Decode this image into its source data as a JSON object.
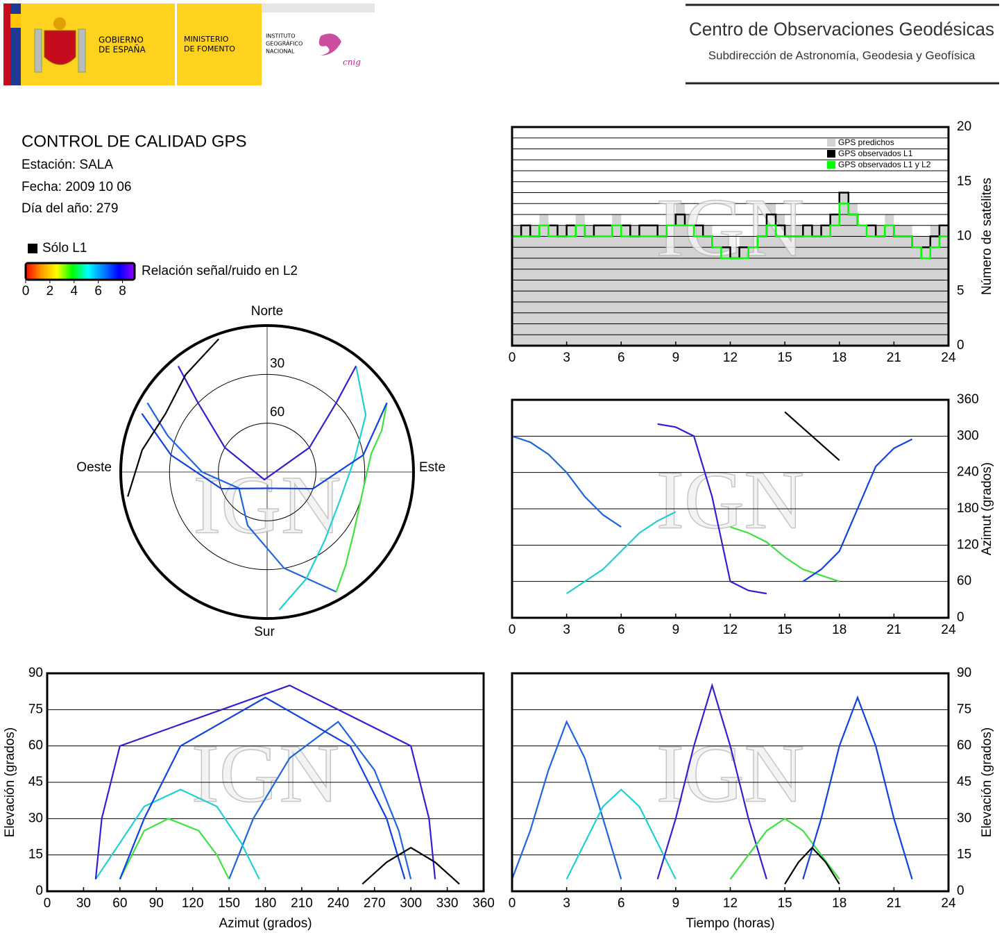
{
  "header": {
    "gobierno": [
      "GOBIERNO",
      "DE ESPAÑA"
    ],
    "ministerio": [
      "MINISTERIO",
      "DE FOMENTO"
    ],
    "instituto": [
      "INSTITUTO",
      "GEOGRÁFICO",
      "NACIONAL"
    ],
    "cnig": "cnig",
    "center": "Centro de Observaciones Geodésicas",
    "subtitle": "Subdirección de Astronomía, Geodesia y Geofísica"
  },
  "info": {
    "title": "CONTROL DE CALIDAD GPS",
    "station": "Estación: SALA",
    "date": "Fecha: 2009 10 06",
    "doy": "Día del año: 279"
  },
  "legend": {
    "l1_only": "Sólo L1",
    "colorbar": {
      "label": "Relación señal/ruido en L2",
      "lim": [
        0,
        9
      ],
      "ticks": [
        0,
        2,
        4,
        6,
        8
      ],
      "colors": [
        "#ff0000",
        "#ff9900",
        "#ffff00",
        "#00ff00",
        "#00ffff",
        "#0080ff",
        "#0000ff",
        "#9900ff"
      ]
    }
  },
  "chart_data": [
    {
      "type": "step",
      "watermark": "IGN",
      "ylabel": "Número de satélites",
      "xlim": [
        0,
        24
      ],
      "xticks": [
        0,
        3,
        6,
        9,
        12,
        15,
        18,
        21,
        24
      ],
      "ylim": [
        0,
        20
      ],
      "yticks": [
        0,
        5,
        10,
        15,
        20
      ],
      "minor_yticks": [
        1,
        2,
        3,
        4,
        6,
        7,
        8,
        9,
        11,
        12,
        13,
        14,
        16,
        17,
        18,
        19
      ],
      "legend": "upper right",
      "x": [
        0,
        0.5,
        1,
        1.5,
        2,
        2.5,
        3,
        3.5,
        4,
        4.5,
        5,
        5.5,
        6,
        6.5,
        7,
        7.5,
        8,
        8.5,
        9,
        9.5,
        10,
        10.5,
        11,
        11.5,
        12,
        12.5,
        13,
        13.5,
        14,
        14.5,
        15,
        15.5,
        16,
        16.5,
        17,
        17.5,
        18,
        18.5,
        19,
        19.5,
        20,
        20.5,
        21,
        21.5,
        22,
        22.5,
        23,
        23.5,
        24
      ],
      "series": [
        {
          "name": "GPS predichos",
          "color": "#d3d3d3",
          "fill": true,
          "values": [
            11,
            11,
            11,
            12,
            11,
            11,
            11,
            12,
            11,
            11,
            11,
            12,
            11,
            11,
            11,
            11,
            11,
            12,
            13,
            12,
            11,
            11,
            10,
            10,
            9,
            10,
            10,
            11,
            13,
            12,
            11,
            11,
            11,
            11,
            11,
            12,
            14,
            13,
            11,
            11,
            11,
            12,
            11,
            11,
            10,
            10,
            11,
            11,
            11
          ]
        },
        {
          "name": "GPS observados L1",
          "color": "#000000",
          "values": [
            10,
            11,
            10,
            11,
            11,
            10,
            11,
            11,
            10,
            11,
            11,
            11,
            11,
            10,
            11,
            11,
            10,
            11,
            12,
            11,
            11,
            10,
            9,
            9,
            8,
            9,
            9,
            10,
            12,
            11,
            10,
            10,
            11,
            10,
            11,
            12,
            14,
            12,
            11,
            11,
            10,
            11,
            10,
            10,
            9,
            9,
            10,
            11,
            10
          ]
        },
        {
          "name": "GPS observados L1 y L2",
          "color": "#00ff00",
          "values": [
            10,
            10,
            10,
            11,
            10,
            10,
            10,
            11,
            10,
            10,
            10,
            11,
            10,
            10,
            10,
            10,
            10,
            11,
            11,
            11,
            10,
            10,
            9,
            8,
            8,
            8,
            9,
            10,
            11,
            10,
            10,
            10,
            10,
            10,
            10,
            11,
            13,
            12,
            11,
            10,
            10,
            11,
            10,
            10,
            9,
            8,
            9,
            10,
            10
          ]
        }
      ]
    },
    {
      "type": "line",
      "watermark": "IGN",
      "ylabel": "Azimut (grados)",
      "xlim": [
        0,
        24
      ],
      "xticks": [
        0,
        3,
        6,
        9,
        12,
        15,
        18,
        21,
        24
      ],
      "ylim": [
        0,
        360
      ],
      "yticks": [
        0,
        60,
        120,
        180,
        240,
        300,
        360
      ],
      "series": [
        {
          "color": "#1e64dc",
          "x": [
            0,
            1,
            2,
            3,
            4,
            5,
            6
          ],
          "values": [
            300,
            290,
            270,
            240,
            200,
            170,
            150
          ]
        },
        {
          "color": "#20d0d0",
          "x": [
            3,
            4,
            5,
            6,
            7,
            8,
            9
          ],
          "values": [
            40,
            60,
            80,
            110,
            140,
            160,
            175
          ]
        },
        {
          "color": "#3020d0",
          "x": [
            8,
            9,
            10,
            11,
            12,
            13,
            14
          ],
          "values": [
            320,
            315,
            300,
            200,
            60,
            45,
            40
          ]
        },
        {
          "color": "#40e040",
          "x": [
            12,
            13,
            14,
            15,
            16,
            17,
            18
          ],
          "values": [
            150,
            140,
            125,
            100,
            80,
            70,
            60
          ]
        },
        {
          "color": "#1040e0",
          "x": [
            16,
            17,
            18,
            19,
            20,
            21,
            22
          ],
          "values": [
            60,
            80,
            110,
            180,
            250,
            280,
            295
          ]
        },
        {
          "color": "#000000",
          "x": [
            15,
            15.75,
            16.5,
            17.25,
            18
          ],
          "values": [
            340,
            320,
            300,
            280,
            260
          ]
        }
      ]
    },
    {
      "type": "polar",
      "watermark": "IGN",
      "directions": {
        "north": "Norte",
        "south": "Sur",
        "east": "Este",
        "west": "Oeste"
      },
      "rlim": [
        90,
        0
      ],
      "rticks": [
        30,
        60
      ],
      "series": [
        {
          "color": "#1e64dc",
          "x": [
            300,
            290,
            270,
            240,
            200,
            170,
            150
          ],
          "values": [
            5,
            25,
            50,
            70,
            55,
            30,
            5
          ]
        },
        {
          "color": "#20d0d0",
          "x": [
            40,
            60,
            80,
            110,
            140,
            160,
            175
          ],
          "values": [
            5,
            20,
            35,
            42,
            35,
            20,
            5
          ]
        },
        {
          "color": "#3020d0",
          "x": [
            320,
            315,
            300,
            200,
            60,
            45,
            40
          ],
          "values": [
            5,
            30,
            60,
            85,
            60,
            30,
            5
          ]
        },
        {
          "color": "#40e040",
          "x": [
            150,
            140,
            125,
            100,
            80,
            70,
            60
          ],
          "values": [
            5,
            15,
            25,
            30,
            25,
            15,
            5
          ]
        },
        {
          "color": "#1040e0",
          "x": [
            60,
            80,
            110,
            180,
            250,
            280,
            295
          ],
          "values": [
            5,
            30,
            60,
            80,
            60,
            30,
            5
          ]
        },
        {
          "color": "#000000",
          "x": [
            340,
            320,
            300,
            280,
            260
          ],
          "values": [
            3,
            12,
            18,
            12,
            3
          ]
        }
      ]
    },
    {
      "type": "line",
      "watermark": "IGN",
      "xlabel": "Azimut (grados)",
      "ylabel": "Elevación (grados)",
      "xlim": [
        0,
        360
      ],
      "xticks": [
        0,
        30,
        60,
        90,
        120,
        150,
        180,
        210,
        240,
        270,
        300,
        330,
        360
      ],
      "ylim": [
        0,
        90
      ],
      "yticks": [
        0,
        15,
        30,
        45,
        60,
        75,
        90
      ],
      "series": [
        {
          "color": "#1e64dc",
          "x": [
            300,
            290,
            270,
            240,
            200,
            170,
            150
          ],
          "values": [
            5,
            25,
            50,
            70,
            55,
            30,
            5
          ]
        },
        {
          "color": "#20d0d0",
          "x": [
            40,
            60,
            80,
            110,
            140,
            160,
            175
          ],
          "values": [
            5,
            20,
            35,
            42,
            35,
            20,
            5
          ]
        },
        {
          "color": "#3020d0",
          "x": [
            320,
            315,
            300,
            200,
            60,
            45,
            40
          ],
          "values": [
            5,
            30,
            60,
            85,
            60,
            30,
            5
          ]
        },
        {
          "color": "#40e040",
          "x": [
            150,
            140,
            125,
            100,
            80,
            70,
            60
          ],
          "values": [
            5,
            15,
            25,
            30,
            25,
            15,
            5
          ]
        },
        {
          "color": "#1040e0",
          "x": [
            60,
            80,
            110,
            180,
            250,
            280,
            295
          ],
          "values": [
            5,
            30,
            60,
            80,
            60,
            30,
            5
          ]
        },
        {
          "color": "#000000",
          "x": [
            340,
            320,
            300,
            280,
            260
          ],
          "values": [
            3,
            12,
            18,
            12,
            3
          ]
        }
      ]
    },
    {
      "type": "line",
      "watermark": "IGN",
      "xlabel": "Tiempo (horas)",
      "ylabel": "Elevación (grados)",
      "xlim": [
        0,
        24
      ],
      "xticks": [
        0,
        3,
        6,
        9,
        12,
        15,
        18,
        21,
        24
      ],
      "ylim": [
        0,
        90
      ],
      "yticks": [
        0,
        15,
        30,
        45,
        60,
        75,
        90
      ],
      "series": [
        {
          "color": "#1e64dc",
          "x": [
            0,
            1,
            2,
            3,
            4,
            5,
            6
          ],
          "values": [
            5,
            25,
            50,
            70,
            55,
            30,
            5
          ]
        },
        {
          "color": "#20d0d0",
          "x": [
            3,
            4,
            5,
            6,
            7,
            8,
            9
          ],
          "values": [
            5,
            20,
            35,
            42,
            35,
            20,
            5
          ]
        },
        {
          "color": "#3020d0",
          "x": [
            8,
            9,
            10,
            11,
            12,
            13,
            14
          ],
          "values": [
            5,
            30,
            60,
            85,
            60,
            30,
            5
          ]
        },
        {
          "color": "#40e040",
          "x": [
            12,
            13,
            14,
            15,
            16,
            17,
            18
          ],
          "values": [
            5,
            15,
            25,
            30,
            25,
            15,
            5
          ]
        },
        {
          "color": "#1040e0",
          "x": [
            16,
            17,
            18,
            19,
            20,
            21,
            22
          ],
          "values": [
            5,
            30,
            60,
            80,
            60,
            30,
            5
          ]
        },
        {
          "color": "#000000",
          "x": [
            15,
            15.75,
            16.5,
            17.25,
            18
          ],
          "values": [
            3,
            12,
            18,
            12,
            3
          ]
        }
      ]
    }
  ]
}
